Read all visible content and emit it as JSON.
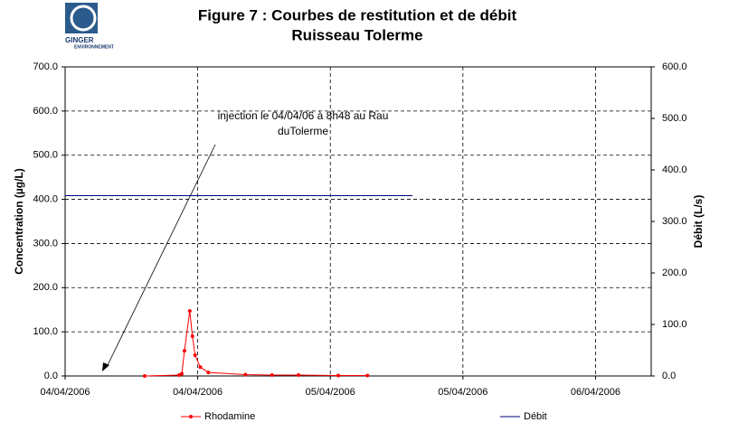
{
  "logo": {
    "name": "GINGER",
    "subtitle": "ENVIRONNEMENT"
  },
  "chart_data": {
    "type": "line",
    "title": [
      "Figure 7 : Courbes de restitution et de débit",
      "Ruisseau Tolerme"
    ],
    "y_label": "Concentration (µg/L)",
    "y2_label": "Débit (L/s)",
    "annotation": [
      "injection le 04/04/06 à 8h48 au Rau",
      "duTolerme"
    ],
    "xlim": [
      0,
      2.21
    ],
    "xticks": [
      {
        "value": 0,
        "label": "04/04/2006"
      },
      {
        "value": 0.5,
        "label": "04/04/2006"
      },
      {
        "value": 1,
        "label": "05/04/2006"
      },
      {
        "value": 1.5,
        "label": "05/04/2006"
      },
      {
        "value": 2,
        "label": "06/04/2006"
      }
    ],
    "ylim": [
      0,
      700
    ],
    "yticks": [
      {
        "value": 0,
        "label": "0.0"
      },
      {
        "value": 100,
        "label": "100.0"
      },
      {
        "value": 200,
        "label": "200.0"
      },
      {
        "value": 300,
        "label": "300.0"
      },
      {
        "value": 400,
        "label": "400.0"
      },
      {
        "value": 500,
        "label": "500.0"
      },
      {
        "value": 600,
        "label": "600.0"
      },
      {
        "value": 700,
        "label": "700.0"
      }
    ],
    "y2lim": [
      0,
      600
    ],
    "y2ticks": [
      {
        "value": 0,
        "label": "0.0"
      },
      {
        "value": 100,
        "label": "100.0"
      },
      {
        "value": 200,
        "label": "200.0"
      },
      {
        "value": 300,
        "label": "300.0"
      },
      {
        "value": 400,
        "label": "400.0"
      },
      {
        "value": 500,
        "label": "500.0"
      },
      {
        "value": 600,
        "label": "600.0"
      }
    ],
    "grid": true,
    "legend": "bottom",
    "series": [
      {
        "name": "Rhodamine",
        "color": "#ff0000",
        "marker": true,
        "x": [
          0.3,
          0.43,
          0.44,
          0.45,
          0.47,
          0.48,
          0.49,
          0.51,
          0.54,
          0.68,
          0.78,
          0.88,
          1.03,
          1.14
        ],
        "values": [
          0,
          2,
          5,
          57,
          147,
          90,
          47,
          20,
          8,
          3,
          2,
          2,
          1,
          1
        ]
      },
      {
        "name": "Débit",
        "color": "#000080",
        "marker": false,
        "axis": "y2",
        "x": [
          0,
          1.31
        ],
        "values": [
          350,
          350
        ]
      }
    ]
  }
}
